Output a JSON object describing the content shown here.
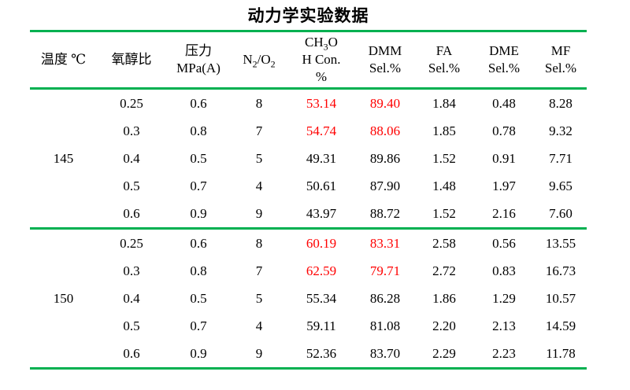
{
  "title": "动力学实验数据",
  "colors": {
    "table_line_green": "#00B050",
    "highlight_red": "#FF0000",
    "text_black": "#000000",
    "background_white": "#FFFFFF"
  },
  "table": {
    "headers": [
      {
        "id": "temperature",
        "label": "温度 ℃",
        "lines": [
          [
            {
              "t": "温度 ℃"
            }
          ]
        ]
      },
      {
        "id": "ratio",
        "label": "氧醇比",
        "lines": [
          [
            {
              "t": "氧醇比"
            }
          ]
        ]
      },
      {
        "id": "pressure",
        "label": "压力 MPa(A)",
        "lines": [
          [
            {
              "t": "压力"
            }
          ],
          [
            {
              "t": "MPa(A)"
            }
          ]
        ]
      },
      {
        "id": "n2o2",
        "label": "N₂/O₂",
        "lines": [
          [
            {
              "t": "N"
            },
            {
              "t": "2",
              "sub": true
            },
            {
              "t": "/O"
            },
            {
              "t": "2",
              "sub": true
            }
          ]
        ]
      },
      {
        "id": "ch3oh",
        "label": "CH₃OH Con. %",
        "lines": [
          [
            {
              "t": "CH"
            },
            {
              "t": "3",
              "sub": true
            },
            {
              "t": "O"
            }
          ],
          [
            {
              "t": "H Con."
            }
          ],
          [
            {
              "t": "%"
            }
          ]
        ]
      },
      {
        "id": "dmm",
        "label": "DMM Sel.%",
        "lines": [
          [
            {
              "t": "DMM"
            }
          ],
          [
            {
              "t": "Sel.%"
            }
          ]
        ]
      },
      {
        "id": "fa",
        "label": "FA Sel.%",
        "lines": [
          [
            {
              "t": "FA"
            }
          ],
          [
            {
              "t": "Sel.%"
            }
          ]
        ]
      },
      {
        "id": "dme",
        "label": "DME Sel.%",
        "lines": [
          [
            {
              "t": "DME"
            }
          ],
          [
            {
              "t": "Sel.%"
            }
          ]
        ]
      },
      {
        "id": "mf",
        "label": "MF Sel.%",
        "lines": [
          [
            {
              "t": "MF"
            }
          ],
          [
            {
              "t": "Sel.%"
            }
          ]
        ]
      }
    ],
    "column_keys": [
      "ratio",
      "pressure",
      "n2o2",
      "ch3oh",
      "dmm",
      "fa",
      "dme",
      "mf"
    ],
    "highlight_columns": [
      "ch3oh",
      "dmm"
    ],
    "groups": [
      {
        "temperature": "145",
        "rows": [
          {
            "ratio": "0.25",
            "pressure": "0.6",
            "n2o2": "8",
            "ch3oh": "53.14",
            "dmm": "89.40",
            "fa": "1.84",
            "dme": "0.48",
            "mf": "8.28",
            "highlight": true
          },
          {
            "ratio": "0.3",
            "pressure": "0.8",
            "n2o2": "7",
            "ch3oh": "54.74",
            "dmm": "88.06",
            "fa": "1.85",
            "dme": "0.78",
            "mf": "9.32",
            "highlight": true
          },
          {
            "ratio": "0.4",
            "pressure": "0.5",
            "n2o2": "5",
            "ch3oh": "49.31",
            "dmm": "89.86",
            "fa": "1.52",
            "dme": "0.91",
            "mf": "7.71",
            "highlight": false
          },
          {
            "ratio": "0.5",
            "pressure": "0.7",
            "n2o2": "4",
            "ch3oh": "50.61",
            "dmm": "87.90",
            "fa": "1.48",
            "dme": "1.97",
            "mf": "9.65",
            "highlight": false
          },
          {
            "ratio": "0.6",
            "pressure": "0.9",
            "n2o2": "9",
            "ch3oh": "43.97",
            "dmm": "88.72",
            "fa": "1.52",
            "dme": "2.16",
            "mf": "7.60",
            "highlight": false
          }
        ]
      },
      {
        "temperature": "150",
        "rows": [
          {
            "ratio": "0.25",
            "pressure": "0.6",
            "n2o2": "8",
            "ch3oh": "60.19",
            "dmm": "83.31",
            "fa": "2.58",
            "dme": "0.56",
            "mf": "13.55",
            "highlight": true
          },
          {
            "ratio": "0.3",
            "pressure": "0.8",
            "n2o2": "7",
            "ch3oh": "62.59",
            "dmm": "79.71",
            "fa": "2.72",
            "dme": "0.83",
            "mf": "16.73",
            "highlight": true
          },
          {
            "ratio": "0.4",
            "pressure": "0.5",
            "n2o2": "5",
            "ch3oh": "55.34",
            "dmm": "86.28",
            "fa": "1.86",
            "dme": "1.29",
            "mf": "10.57",
            "highlight": false
          },
          {
            "ratio": "0.5",
            "pressure": "0.7",
            "n2o2": "4",
            "ch3oh": "59.11",
            "dmm": "81.08",
            "fa": "2.20",
            "dme": "2.13",
            "mf": "14.59",
            "highlight": false
          },
          {
            "ratio": "0.6",
            "pressure": "0.9",
            "n2o2": "9",
            "ch3oh": "52.36",
            "dmm": "83.70",
            "fa": "2.29",
            "dme": "2.23",
            "mf": "11.78",
            "highlight": false
          }
        ]
      }
    ]
  }
}
